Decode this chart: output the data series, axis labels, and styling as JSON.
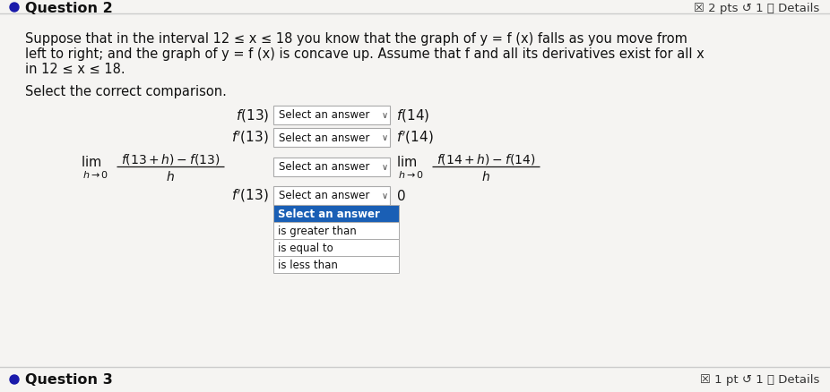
{
  "bg_color": "#e8e8e8",
  "white_bg": "#f5f4f2",
  "question_dot_color": "#1a1aaa",
  "question_label": "Question 2",
  "header_right": "☒ 2 pts ↺ 1 ⓘ Details",
  "body_line1": "Suppose that in the interval 12 ≤ x ≤ 18 you know that the graph of y = f (x) falls as you move from",
  "body_line2": "left to right; and the graph of y = f (x) is concave up. Assume that f and all its derivatives exist for all x",
  "body_line3": "in 12 ≤ x ≤ 18.",
  "instruction": "Select the correct comparison.",
  "dropdown_label": "Select an answer",
  "dropdown_bg": "#ffffff",
  "dropdown_border": "#aaaaaa",
  "dropdown_arrow": "∨",
  "open_dropdown_header": "Select an answer",
  "open_dropdown_header_bg": "#1a5fb5",
  "open_dropdown_header_color": "#ffffff",
  "open_dropdown_item1": "is greater than",
  "open_dropdown_item2": "is equal to",
  "open_dropdown_item3": "is less than",
  "open_dropdown_bg": "#ffffff",
  "open_dropdown_border": "#aaaaaa",
  "question3_label": "Question 3",
  "question3_right": "☒ 1 pt ↺ 1 ⓘ Details",
  "sep_line_color": "#cccccc",
  "font_size_body": 10.5,
  "font_size_question": 11.5,
  "font_size_math": 11
}
